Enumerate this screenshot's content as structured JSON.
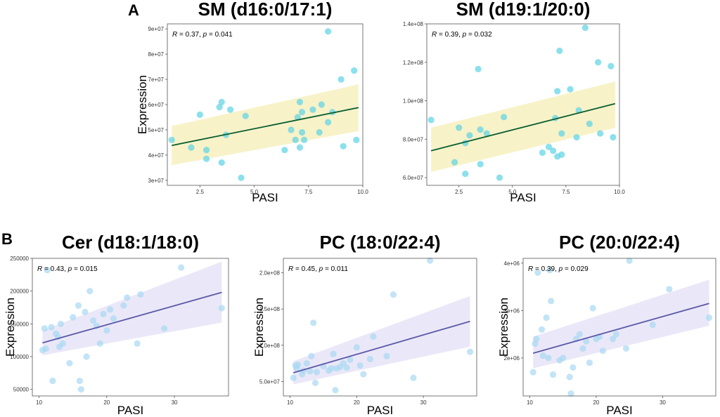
{
  "panel_labels": [
    "A",
    "B"
  ],
  "chart_data": [
    {
      "type": "scatter",
      "title": "SM (d16:0/17:1)",
      "xlabel": "PASI",
      "ylabel": "Expression",
      "stat_r": "0.37",
      "stat_p": "0.041",
      "xlim": [
        1,
        10
      ],
      "ylim": [
        28000000.0,
        92000000.0
      ],
      "xticks": [
        2.5,
        5.0,
        7.5,
        10.0
      ],
      "xtick_labels": [
        "2.5",
        "5.0",
        "7.5",
        "10.0"
      ],
      "yticks": [
        30000000.0,
        40000000.0,
        50000000.0,
        60000000.0,
        70000000.0,
        80000000.0,
        90000000.0
      ],
      "ytick_labels": [
        "3e+07",
        "4e+07",
        "5e+07",
        "6e+07",
        "7e+07",
        "8e+07",
        "9e+07"
      ],
      "points": [
        [
          1.2,
          46000000.0
        ],
        [
          2.1,
          43000000.0
        ],
        [
          2.5,
          56000000.0
        ],
        [
          2.8,
          42000000.0
        ],
        [
          2.8,
          38500000.0
        ],
        [
          3.4,
          59000000.0
        ],
        [
          3.5,
          61000000.0
        ],
        [
          3.5,
          37000000.0
        ],
        [
          3.7,
          48000000.0
        ],
        [
          3.9,
          58000000.0
        ],
        [
          4.4,
          31000000.0
        ],
        [
          4.6,
          55500000.0
        ],
        [
          6.4,
          42000000.0
        ],
        [
          6.7,
          50000000.0
        ],
        [
          6.9,
          46000000.0
        ],
        [
          7,
          55000000.0
        ],
        [
          7.1,
          61000000.0
        ],
        [
          7.1,
          43000000.0
        ],
        [
          7.2,
          57000000.0
        ],
        [
          7.2,
          49000000.0
        ],
        [
          7.3,
          46000000.0
        ],
        [
          7.7,
          58000000.0
        ],
        [
          8,
          49000000.0
        ],
        [
          8.1,
          60000000.0
        ],
        [
          8.4,
          89000000.0
        ],
        [
          8.4,
          53000000.0
        ],
        [
          8.6,
          57000000.0
        ],
        [
          9,
          70000000.0
        ],
        [
          9.1,
          43500000.0
        ],
        [
          9.6,
          73500000.0
        ],
        [
          9.7,
          46000000.0
        ]
      ],
      "fit": {
        "x": [
          1.2,
          9.8
        ],
        "y": [
          43800000.0,
          58800000.0
        ]
      },
      "ci_upper": [
        51500000.0,
        68000000.0
      ],
      "ci_lower": [
        36000000.0,
        49500000.0
      ],
      "point_color": "#5bd3e6",
      "line_color": "#0a5e2f",
      "band_color": "#f7f0c0"
    },
    {
      "type": "scatter",
      "title": "SM (d19:1/20:0)",
      "xlabel": "PASI",
      "ylabel": "",
      "stat_r": "0.39",
      "stat_p": "0.032",
      "xlim": [
        1,
        10
      ],
      "ylim": [
        56000000.0,
        140000000.0
      ],
      "xticks": [
        2.5,
        5.0,
        7.5,
        10.0
      ],
      "xtick_labels": [
        "2.5",
        "5.0",
        "7.5",
        "10.0"
      ],
      "yticks": [
        60000000.0,
        80000000.0,
        100000000.0,
        120000000.0,
        140000000.0
      ],
      "ytick_labels": [
        "6.0e+07",
        "8.0e+07",
        "1.0e+08",
        "1.2e+08",
        "1.4e+08"
      ],
      "points": [
        [
          1.2,
          90000000.0
        ],
        [
          2.3,
          68000000.0
        ],
        [
          2.5,
          86000000.0
        ],
        [
          2.8,
          62000000.0
        ],
        [
          2.8,
          78000000.0
        ],
        [
          3,
          82000000.0
        ],
        [
          3.4,
          116500000.0
        ],
        [
          3.5,
          67000000.0
        ],
        [
          3.5,
          85000000.0
        ],
        [
          3.8,
          83000000.0
        ],
        [
          4.4,
          60000000.0
        ],
        [
          4.6,
          91500000.0
        ],
        [
          6.4,
          73000000.0
        ],
        [
          6.7,
          76000000.0
        ],
        [
          6.9,
          74000000.0
        ],
        [
          7,
          91000000.0
        ],
        [
          7.1,
          105000000.0
        ],
        [
          7.1,
          71000000.0
        ],
        [
          7.2,
          126000000.0
        ],
        [
          7.3,
          72000000.0
        ],
        [
          7.3,
          83000000.0
        ],
        [
          7.7,
          106000000.0
        ],
        [
          8,
          81000000.0
        ],
        [
          8.1,
          95000000.0
        ],
        [
          8.4,
          138000000.0
        ],
        [
          8.6,
          88000000.0
        ],
        [
          9,
          120000000.0
        ],
        [
          9.1,
          83000000.0
        ],
        [
          9.6,
          118000000.0
        ],
        [
          9.7,
          81000000.0
        ]
      ],
      "fit": {
        "x": [
          1.2,
          9.8
        ],
        "y": [
          74000000.0,
          98500000.0
        ]
      },
      "ci_upper": [
        86000000.0,
        110000000.0
      ],
      "ci_lower": [
        63000000.0,
        86000000.0
      ],
      "point_color": "#5bd3e6",
      "line_color": "#0a5e2f",
      "band_color": "#f7f0c0"
    },
    {
      "type": "scatter",
      "title": "Cer (d18:1/18:0)",
      "xlabel": "PASI",
      "ylabel": "Expression",
      "stat_r": "0.43",
      "stat_p": "0.015",
      "xlim": [
        9,
        38
      ],
      "ylim": [
        40000,
        250000
      ],
      "xticks": [
        10,
        20,
        30
      ],
      "xtick_labels": [
        "10",
        "20",
        "30"
      ],
      "yticks": [
        50000,
        100000,
        150000,
        200000,
        250000
      ],
      "ytick_labels": [
        "50000",
        "100000",
        "150000",
        "200000",
        "250000"
      ],
      "points": [
        [
          10.5,
          110000
        ],
        [
          10.8,
          143000
        ],
        [
          11,
          112000
        ],
        [
          11.2,
          232000
        ],
        [
          11.8,
          145000
        ],
        [
          12,
          63000
        ],
        [
          12.5,
          135000
        ],
        [
          12.8,
          130000
        ],
        [
          13,
          115000
        ],
        [
          13.2,
          150000
        ],
        [
          13.5,
          120000
        ],
        [
          14.5,
          90000
        ],
        [
          15,
          160000
        ],
        [
          15.8,
          178000
        ],
        [
          16,
          63000
        ],
        [
          16.2,
          50000
        ],
        [
          16.8,
          168000
        ],
        [
          17,
          100000
        ],
        [
          17.5,
          200000
        ],
        [
          18,
          155000
        ],
        [
          18.5,
          147000
        ],
        [
          19,
          120000
        ],
        [
          19.5,
          165000
        ],
        [
          20,
          140000
        ],
        [
          20.5,
          172000
        ],
        [
          21,
          158000
        ],
        [
          22.5,
          178000
        ],
        [
          23,
          190000
        ],
        [
          24.5,
          120000
        ],
        [
          25,
          195000
        ],
        [
          28.5,
          143000
        ],
        [
          31,
          236000
        ],
        [
          37,
          174000
        ]
      ],
      "fit": {
        "x": [
          10.5,
          37
        ],
        "y": [
          121000,
          198000
        ]
      },
      "ci_upper": [
        140000,
        245000
      ],
      "ci_lower": [
        102000,
        152000
      ],
      "point_color": "#a8d9f2",
      "line_color": "#5b58a8",
      "band_color": "#e6e4f7"
    },
    {
      "type": "scatter",
      "title": "PC (18:0/22:4)",
      "xlabel": "PASI",
      "ylabel": "Expression",
      "stat_r": "0.45",
      "stat_p": "0.011",
      "xlim": [
        9,
        38
      ],
      "ylim": [
        30000000.0,
        220000000.0
      ],
      "xticks": [
        10,
        20,
        30
      ],
      "xtick_labels": [
        "10",
        "20",
        "30"
      ],
      "yticks": [
        50000000.0,
        100000000.0,
        150000000.0,
        200000000.0
      ],
      "ytick_labels": [
        "5.0e+07",
        "1.0e+08",
        "1.5e+08",
        "2.0e+08"
      ],
      "points": [
        [
          10.5,
          55000000.0
        ],
        [
          10.8,
          72000000.0
        ],
        [
          11,
          68000000.0
        ],
        [
          11.2,
          73000000.0
        ],
        [
          11.8,
          60000000.0
        ],
        [
          12,
          65000000.0
        ],
        [
          12.5,
          75000000.0
        ],
        [
          13,
          64000000.0
        ],
        [
          13.2,
          85000000.0
        ],
        [
          13.5,
          131000000.0
        ],
        [
          13.8,
          48000000.0
        ],
        [
          14,
          63000000.0
        ],
        [
          15,
          71000000.0
        ],
        [
          15.8,
          65000000.0
        ],
        [
          16.2,
          68000000.0
        ],
        [
          16.5,
          88000000.0
        ],
        [
          16.8,
          38000000.0
        ],
        [
          17,
          68000000.0
        ],
        [
          17.5,
          70000000.0
        ],
        [
          18,
          75000000.0
        ],
        [
          18.5,
          69000000.0
        ],
        [
          19,
          80000000.0
        ],
        [
          20,
          97000000.0
        ],
        [
          20.5,
          72000000.0
        ],
        [
          21,
          60000000.0
        ],
        [
          22,
          81000000.0
        ],
        [
          22.5,
          112000000.0
        ],
        [
          24.5,
          85000000.0
        ],
        [
          25.5,
          170000000.0
        ],
        [
          28.5,
          55000000.0
        ],
        [
          31,
          217000000.0
        ],
        [
          37,
          91000000.0
        ]
      ],
      "fit": {
        "x": [
          10.5,
          37
        ],
        "y": [
          62000000.0,
          133000000.0
        ]
      },
      "ci_upper": [
        78000000.0,
        168000000.0
      ],
      "ci_lower": [
        46000000.0,
        98000000.0
      ],
      "point_color": "#a8d9f2",
      "line_color": "#5b58a8",
      "band_color": "#e6e4f7"
    },
    {
      "type": "scatter",
      "title": "PC (20:0/22:4)",
      "xlabel": "PASI",
      "ylabel": "Expression",
      "stat_r": "0.39",
      "stat_p": "0.029",
      "xlim": [
        9,
        38
      ],
      "ylim": [
        1200000.0,
        4100000.0
      ],
      "xticks": [
        10,
        20,
        30
      ],
      "xtick_labels": [
        "10",
        "20",
        "30"
      ],
      "yticks": [
        2000000.0,
        3000000.0,
        4000000.0
      ],
      "ytick_labels": [
        "2e+06",
        "3e+06",
        "4e+06"
      ],
      "points": [
        [
          10.5,
          1700000.0
        ],
        [
          10.8,
          2300000.0
        ],
        [
          11,
          2400000.0
        ],
        [
          11.2,
          3800000.0
        ],
        [
          11.8,
          2600000.0
        ],
        [
          12,
          2050000.0
        ],
        [
          12.5,
          2850000.0
        ],
        [
          12.8,
          2000000.0
        ],
        [
          13,
          3850000.0
        ],
        [
          13.2,
          3200000.0
        ],
        [
          13.5,
          1650000.0
        ],
        [
          14.5,
          1950000.0
        ],
        [
          15,
          2000000.0
        ],
        [
          16,
          1600000.0
        ],
        [
          16.2,
          1250000.0
        ],
        [
          16.5,
          1800000.0
        ],
        [
          17,
          2400000.0
        ],
        [
          17.5,
          2500000.0
        ],
        [
          18,
          2200000.0
        ],
        [
          18.5,
          2350000.0
        ],
        [
          19,
          1900000.0
        ],
        [
          19.5,
          3050000.0
        ],
        [
          20,
          2400000.0
        ],
        [
          20.5,
          2450000.0
        ],
        [
          21,
          2150000.0
        ],
        [
          22.5,
          2400000.0
        ],
        [
          23,
          2500000.0
        ],
        [
          24.5,
          2200000.0
        ],
        [
          25,
          4050000.0
        ],
        [
          28.5,
          2700000.0
        ],
        [
          31,
          3450000.0
        ],
        [
          37,
          2850000.0
        ]
      ],
      "fit": {
        "x": [
          10.5,
          37
        ],
        "y": [
          2100000.0,
          3150000.0
        ]
      },
      "ci_upper": [
        2450000.0,
        3650000.0
      ],
      "ci_lower": [
        1780000.0,
        2680000.0
      ],
      "point_color": "#a8d9f2",
      "line_color": "#5b58a8",
      "band_color": "#e6e4f7"
    }
  ]
}
